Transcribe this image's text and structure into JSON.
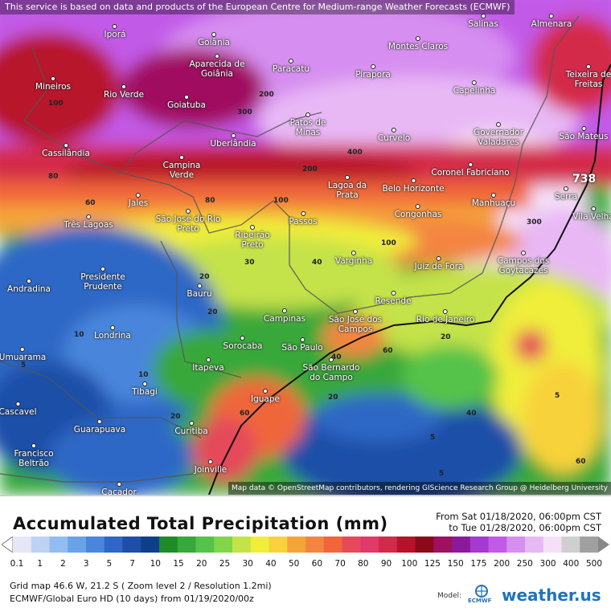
{
  "attribution_top": "This service is based on data and products of the European Centre for Medium-range Weather Forecasts (ECMWF)",
  "attribution_bottom": "Map data © OpenStreetMap contributors, rendering GIScience Research Group @ Heidelberg University",
  "badge": "738",
  "cities": [
    {
      "name": "Iporá"
    },
    {
      "name": "Goiânia"
    },
    {
      "name": "Aparecida de Goiânia"
    },
    {
      "name": "Paracatu"
    },
    {
      "name": "Montes Claros"
    },
    {
      "name": "Pirapora"
    },
    {
      "name": "Salinas"
    },
    {
      "name": "Almenara"
    },
    {
      "name": "Mineiros"
    },
    {
      "name": "Rio Verde"
    },
    {
      "name": "Goiatuba"
    },
    {
      "name": "Capelinha"
    },
    {
      "name": "Teixeira de Freitas"
    },
    {
      "name": "Patos de Minas"
    },
    {
      "name": "Uberlândia"
    },
    {
      "name": "Curvelo"
    },
    {
      "name": "Governador Valadares"
    },
    {
      "name": "São Mateus"
    },
    {
      "name": "Cassilândia"
    },
    {
      "name": "Campina Verde"
    },
    {
      "name": "Coronel Fabriciano"
    },
    {
      "name": "Lagoa da Prata"
    },
    {
      "name": "Belo Horizonte"
    },
    {
      "name": "Manhuaçu"
    },
    {
      "name": "Serra"
    },
    {
      "name": "Vila Velha"
    },
    {
      "name": "Jales"
    },
    {
      "name": "Três Lagoas"
    },
    {
      "name": "São José do Rio Preto"
    },
    {
      "name": "Passos"
    },
    {
      "name": "Congonhas"
    },
    {
      "name": "Ribeirão Preto"
    },
    {
      "name": "Varginha"
    },
    {
      "name": "Juiz de Fora"
    },
    {
      "name": "Campos dos Goytacazes"
    },
    {
      "name": "Andradina"
    },
    {
      "name": "Presidente Prudente"
    },
    {
      "name": "Bauru"
    },
    {
      "name": "Resende"
    },
    {
      "name": "Campinas"
    },
    {
      "name": "São José dos Campos"
    },
    {
      "name": "Rio de Janeiro"
    },
    {
      "name": "Londrina"
    },
    {
      "name": "Sorocaba"
    },
    {
      "name": "São Paulo"
    },
    {
      "name": "Umuarama"
    },
    {
      "name": "Itapeva"
    },
    {
      "name": "São Bernardo do Campo"
    },
    {
      "name": "Tibagi"
    },
    {
      "name": "Iguape"
    },
    {
      "name": "Cascavel"
    },
    {
      "name": "Guarapuava"
    },
    {
      "name": "Curitiba"
    },
    {
      "name": "Francisco Beltrão"
    },
    {
      "name": "Joinville"
    },
    {
      "name": "Caçador"
    }
  ],
  "contours": [
    "300",
    "200",
    "400",
    "200",
    "300",
    "100",
    "100",
    "80",
    "60",
    "40",
    "30",
    "20",
    "20",
    "20",
    "10",
    "10",
    "5",
    "40",
    "60",
    "60",
    "40",
    "20",
    "20",
    "5",
    "5",
    "5",
    "60",
    "80",
    "100"
  ],
  "legend": {
    "title": "Accumulated Total Precipitation (mm)",
    "from": "From Sat 01/18/2020, 06:00pm CST",
    "to": "to Tue 01/28/2020, 06:00pm CST",
    "colors": [
      "#e6e6f5",
      "#bcd3f5",
      "#93bdf0",
      "#6aa2e8",
      "#4a86db",
      "#2f67c6",
      "#1d4fa8",
      "#0f3f8a",
      "#1f8a2a",
      "#37a83a",
      "#55c24a",
      "#7fd64a",
      "#c4e24a",
      "#f0ee3a",
      "#f8d23a",
      "#f5a43a",
      "#f38540",
      "#f0663a",
      "#e54a5a",
      "#e03a6a",
      "#d42a4a",
      "#b8122a",
      "#8a0a1a",
      "#a01060",
      "#8a1a9a",
      "#a53ad0",
      "#c25ae8",
      "#d68ef0",
      "#e8b8f5",
      "#f5e0f8",
      "#cfcfcf",
      "#a0a0a0"
    ],
    "ticks": [
      "0.1",
      "1",
      "2",
      "3",
      "5",
      "7",
      "10",
      "15",
      "20",
      "25",
      "30",
      "40",
      "50",
      "60",
      "70",
      "80",
      "90",
      "100",
      "125",
      "150",
      "175",
      "200",
      "250",
      "300",
      "400",
      "500"
    ]
  },
  "meta": {
    "grid": "Grid map 46.6 W, 21.2 S ( Zoom level 2 / Resolution 1.2mi)",
    "model": "ECMWF/Global Euro HD (10 days)  from  01/19/2020/00z",
    "model_label": "Model:",
    "ecmwf_label": "ECMWF",
    "brand": "weather.us"
  }
}
